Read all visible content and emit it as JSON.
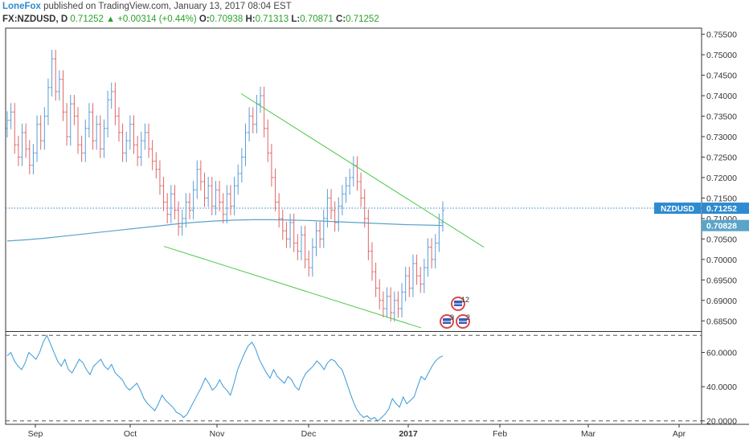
{
  "header": {
    "author": "LoneFox",
    "published": " published on TradingView.com, January 13, 2017 08:04 EST",
    "symbol": "FX:NZDUSD, D",
    "last": "0.71252",
    "change": "+0.00314 (+0.44%)",
    "o_label": "O:",
    "o_value": "0.70938",
    "h_label": "H:",
    "h_value": "0.71313",
    "l_label": "L:",
    "l_value": "0.70871",
    "c_label": "C:",
    "c_value": "0.71252"
  },
  "colors": {
    "up": "#5b9bd5",
    "down": "#e06666",
    "trendline": "#4cc94c",
    "ma": "#5aa4c8",
    "rsi": "#3a9ad9",
    "price_line": "#2e8bcf",
    "label_bg": "#2e8bcf"
  },
  "chart_data": [
    {
      "type": "candlestick",
      "symbol": "NZDUSD",
      "ylim": [
        0.6825,
        0.7565
      ],
      "y_ticks": [
        "0.75500",
        "0.75000",
        "0.74500",
        "0.74000",
        "0.73500",
        "0.73000",
        "0.72500",
        "0.72000",
        "0.71500",
        "0.71000",
        "0.70500",
        "0.70000",
        "0.69500",
        "0.69000",
        "0.68500"
      ],
      "x_ticks": [
        "Sep",
        "Oct",
        "Nov",
        "Dec",
        "2017",
        "Feb",
        "Mar",
        "Apr"
      ],
      "last_price": "0.71252",
      "last_label": "NZDUSD",
      "ma_value": "0.70828",
      "price_series_approx": [
        0.734,
        0.736,
        0.728,
        0.725,
        0.731,
        0.727,
        0.723,
        0.726,
        0.733,
        0.729,
        0.735,
        0.742,
        0.749,
        0.741,
        0.744,
        0.736,
        0.73,
        0.738,
        0.735,
        0.728,
        0.726,
        0.732,
        0.736,
        0.729,
        0.733,
        0.727,
        0.732,
        0.739,
        0.741,
        0.735,
        0.731,
        0.726,
        0.729,
        0.733,
        0.728,
        0.725,
        0.729,
        0.731,
        0.727,
        0.724,
        0.722,
        0.718,
        0.714,
        0.711,
        0.716,
        0.712,
        0.708,
        0.71,
        0.714,
        0.712,
        0.717,
        0.722,
        0.719,
        0.715,
        0.718,
        0.713,
        0.717,
        0.714,
        0.711,
        0.716,
        0.713,
        0.718,
        0.721,
        0.725,
        0.731,
        0.735,
        0.733,
        0.738,
        0.74,
        0.732,
        0.726,
        0.72,
        0.714,
        0.71,
        0.707,
        0.705,
        0.709,
        0.704,
        0.702,
        0.706,
        0.7,
        0.698,
        0.703,
        0.707,
        0.705,
        0.71,
        0.715,
        0.712,
        0.709,
        0.713,
        0.716,
        0.718,
        0.72,
        0.723,
        0.719,
        0.715,
        0.71,
        0.702,
        0.697,
        0.693,
        0.69,
        0.688,
        0.691,
        0.687,
        0.69,
        0.688,
        0.692,
        0.696,
        0.693,
        0.699,
        0.696,
        0.694,
        0.698,
        0.703,
        0.7,
        0.704,
        0.709,
        0.712
      ],
      "moving_average_approx": [
        0.7045,
        0.7048,
        0.7052,
        0.7057,
        0.7062,
        0.7067,
        0.7072,
        0.7077,
        0.7082,
        0.7087,
        0.7091,
        0.7094,
        0.7096,
        0.7097,
        0.7097,
        0.7096,
        0.7095,
        0.7093,
        0.7091,
        0.7089,
        0.7087,
        0.7085,
        0.7084,
        0.7083
      ],
      "trendlines": [
        {
          "name": "upper",
          "from": {
            "date": "2016-11-07",
            "price": 0.7405
          },
          "to": {
            "date": "2017-01-20",
            "price": 0.703
          }
        },
        {
          "name": "lower",
          "from": {
            "date": "2016-10-11",
            "price": 0.7032
          },
          "to": {
            "date": "2017-01-12",
            "price": 0.6833
          }
        }
      ],
      "events": [
        {
          "icon": "us-flag-event-icon",
          "label": "12"
        },
        {
          "icon": "us-flag-event-icon",
          "label": "9"
        },
        {
          "icon": "us-flag-event-icon",
          "label": "2"
        }
      ]
    },
    {
      "type": "line",
      "name": "rsi",
      "ylim": [
        18,
        72
      ],
      "y_ticks": [
        "60.0000",
        "40.0000",
        "20.0000"
      ],
      "bands": [
        20,
        70
      ],
      "values": [
        58,
        60,
        55,
        52,
        50,
        54,
        60,
        58,
        56,
        60,
        66,
        70,
        65,
        60,
        55,
        52,
        56,
        50,
        48,
        52,
        56,
        54,
        50,
        47,
        52,
        54,
        56,
        52,
        50,
        53,
        48,
        46,
        44,
        40,
        38,
        40,
        42,
        38,
        33,
        30,
        28,
        26,
        30,
        35,
        32,
        30,
        28,
        25,
        24,
        22,
        24,
        28,
        32,
        36,
        40,
        45,
        42,
        38,
        40,
        44,
        40,
        38,
        35,
        42,
        50,
        55,
        60,
        64,
        66,
        62,
        56,
        52,
        48,
        45,
        50,
        46,
        44,
        42,
        46,
        44,
        40,
        38,
        44,
        48,
        50,
        52,
        55,
        53,
        50,
        54,
        56,
        55,
        52,
        50,
        44,
        38,
        32,
        27,
        24,
        22,
        23,
        21,
        22,
        20,
        22,
        24,
        27,
        33,
        30,
        28,
        34,
        30,
        32,
        34,
        40,
        46,
        44,
        48,
        52,
        55,
        57,
        58
      ]
    }
  ]
}
